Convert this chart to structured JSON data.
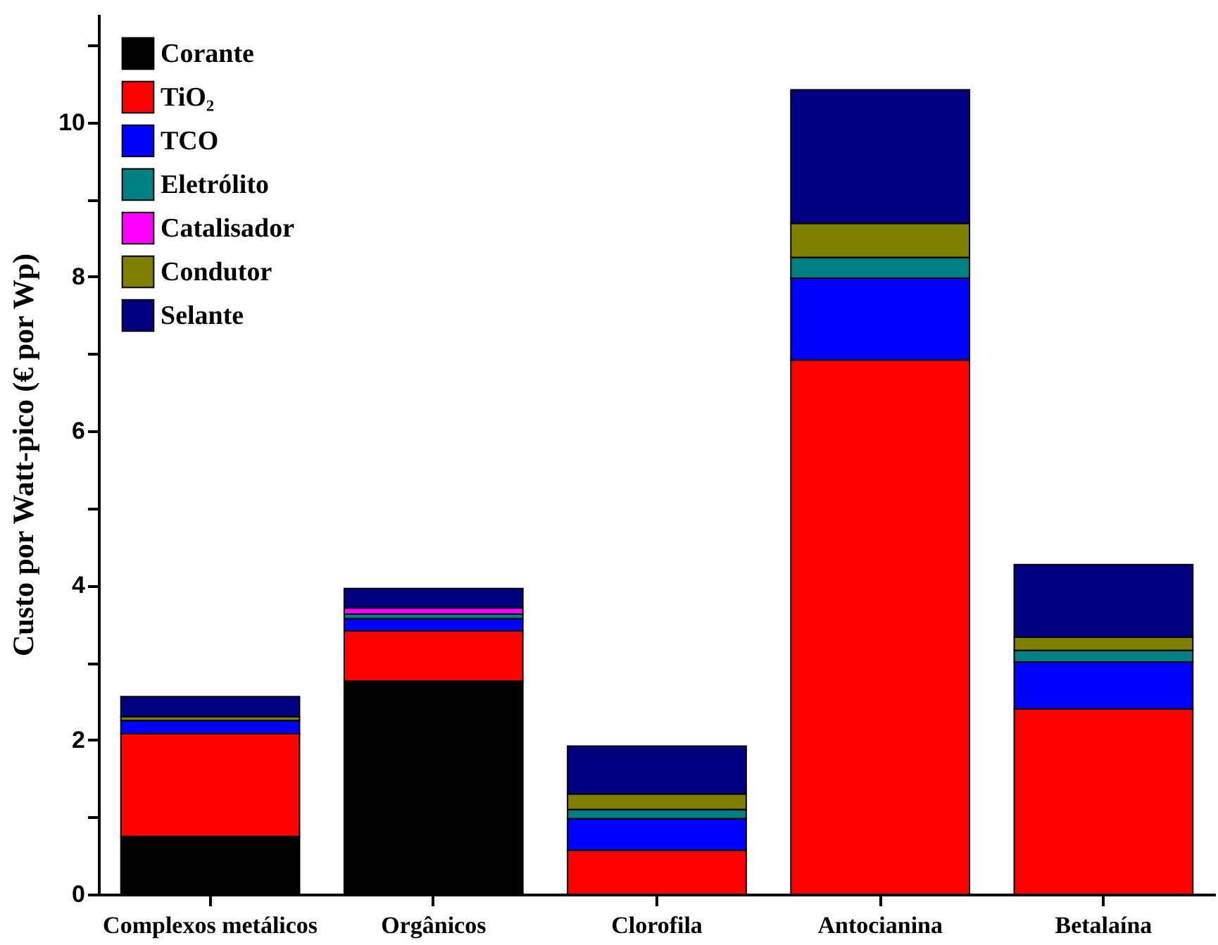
{
  "chart_data": {
    "type": "bar",
    "stacked": true,
    "ylabel": "Custo por Watt-pico (€ por Wp)",
    "categories": [
      "Complexos metálicos",
      "Orgânicos",
      "Clorofila",
      "Antocianina",
      "Betalaína"
    ],
    "series": [
      {
        "name": "Corante",
        "color": "#000000",
        "values": [
          0.75,
          2.76,
          0,
          0,
          0
        ]
      },
      {
        "name": "TiO₂",
        "color": "#ff0000",
        "values": [
          1.33,
          0.65,
          0.57,
          6.92,
          2.4
        ]
      },
      {
        "name": "TCO",
        "color": "#0000ff",
        "values": [
          0.17,
          0.16,
          0.41,
          1.06,
          0.61
        ]
      },
      {
        "name": "Eletrólito",
        "color": "#008080",
        "values": [
          0,
          0.06,
          0.12,
          0.27,
          0.15
        ]
      },
      {
        "name": "Catalisador",
        "color": "#ff00ff",
        "values": [
          0,
          0.08,
          0,
          0,
          0
        ]
      },
      {
        "name": "Condutor",
        "color": "#808000",
        "values": [
          0.05,
          null,
          0.2,
          0.44,
          0.17
        ]
      },
      {
        "name": "Selante",
        "color": "#000080",
        "values": [
          0.26,
          0.25,
          0.62,
          1.73,
          0.94
        ]
      }
    ],
    "ylim": [
      0,
      11.4
    ],
    "yticks": [
      0,
      {
        "value": 1,
        "label": null
      },
      2,
      {
        "value": 3,
        "label": null
      },
      4,
      {
        "value": 5,
        "label": null
      },
      6,
      {
        "value": 7,
        "label": null
      },
      8,
      {
        "value": 9,
        "label": null
      },
      10,
      {
        "value": 11,
        "label": null
      }
    ],
    "grid": false,
    "legend": "top left"
  }
}
